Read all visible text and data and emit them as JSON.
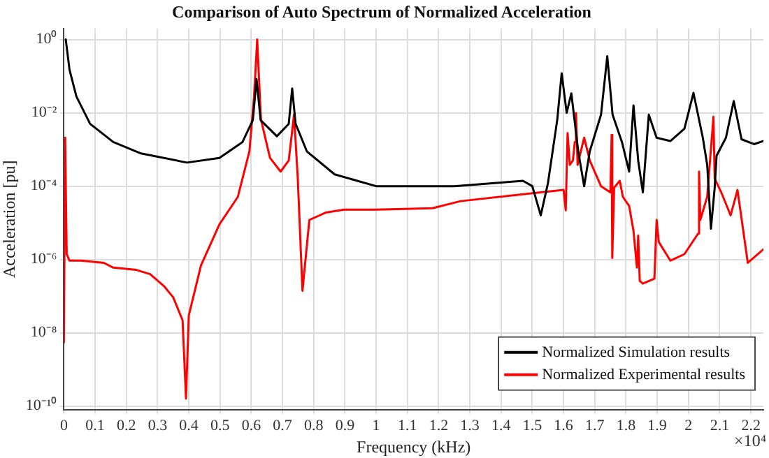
{
  "chart_data": {
    "type": "line",
    "title": "Comparison of Auto Spectrum of Normalized Acceleration",
    "xlabel": "Frequency (kHz)",
    "ylabel": "Acceleration [pu]",
    "log": "y",
    "grid": true,
    "legend": "bottom right",
    "xlim": [
      0,
      2.24
    ],
    "ylim": [
      8e-11,
      2
    ],
    "xticks": [
      0,
      0.1,
      0.2,
      0.3,
      0.4,
      0.5,
      0.6,
      0.7,
      0.8,
      0.9,
      1,
      1.1,
      1.2,
      1.3,
      1.4,
      1.5,
      1.6,
      1.7,
      1.8,
      1.9,
      2,
      2.1,
      2.2
    ],
    "yticks": [
      {
        "value": 1e-10,
        "label": "10⁻¹⁰"
      },
      {
        "value": 1e-08,
        "label": "10⁻⁸"
      },
      {
        "value": 1e-06,
        "label": "10⁻⁶"
      },
      {
        "value": 0.0001,
        "label": "10⁻⁴"
      },
      {
        "value": 0.01,
        "label": "10⁻²"
      },
      {
        "value": 1,
        "label": "10⁰"
      }
    ],
    "annotations": [
      "×10⁴"
    ],
    "series": [
      {
        "name": "Normalized Simulation results",
        "color": "#000000",
        "x": [
          0.006,
          0.018,
          0.04,
          0.084,
          0.158,
          0.247,
          0.394,
          0.498,
          0.572,
          0.605,
          0.617,
          0.63,
          0.682,
          0.72,
          0.731,
          0.742,
          0.778,
          0.867,
          1.0,
          1.25,
          1.47,
          1.5,
          1.527,
          1.55,
          1.58,
          1.594,
          1.61,
          1.625,
          1.647,
          1.666,
          1.684,
          1.72,
          1.74,
          1.757,
          1.787,
          1.81,
          1.824,
          1.839,
          1.854,
          1.873,
          1.898,
          1.942,
          1.987,
          2.016,
          2.046,
          2.06,
          2.072,
          2.084,
          2.09,
          2.12,
          2.145,
          2.17,
          2.21,
          2.24
        ],
        "values": [
          1,
          0.15,
          0.028,
          0.005,
          0.0016,
          0.00078,
          0.00044,
          0.00059,
          0.0016,
          0.0063,
          0.083,
          0.0063,
          0.0023,
          0.005,
          0.046,
          0.005,
          0.00089,
          0.00021,
          0.0001,
          0.0001,
          0.00014,
          0.0001,
          1.6e-05,
          0.00012,
          0.0066,
          0.12,
          0.01,
          0.034,
          0.00089,
          0.0001,
          0.00089,
          0.0089,
          0.35,
          0.0089,
          0.0016,
          0.00025,
          0.016,
          0.0005,
          6.8e-05,
          0.0089,
          0.0021,
          0.0017,
          0.0037,
          0.035,
          0.0021,
          0.00038,
          6.9e-06,
          9.1e-05,
          0.00068,
          0.0021,
          0.021,
          0.0019,
          0.0014,
          0.0017
        ]
      },
      {
        "name": "Normalized Experimental results",
        "color": "#ff0000",
        "x": [
          0,
          0.004,
          0.009,
          0.018,
          0.055,
          0.128,
          0.158,
          0.232,
          0.276,
          0.32,
          0.35,
          0.38,
          0.391,
          0.4,
          0.439,
          0.498,
          0.557,
          0.594,
          0.609,
          0.619,
          0.631,
          0.66,
          0.694,
          0.72,
          0.737,
          0.749,
          0.764,
          0.786,
          0.838,
          0.897,
          1.0,
          1.18,
          1.27,
          1.47,
          1.6,
          1.607,
          1.613,
          1.62,
          1.63,
          1.636,
          1.64,
          1.645,
          1.666,
          1.684,
          1.72,
          1.75,
          1.754,
          1.756,
          1.762,
          1.78,
          1.79,
          1.81,
          1.824,
          1.835,
          1.839,
          1.844,
          1.854,
          1.891,
          1.898,
          1.905,
          1.942,
          1.987,
          2.031,
          2.034,
          2.038,
          2.06,
          2.08,
          2.084,
          2.105,
          2.135,
          2.157,
          2.19,
          2.24
        ],
        "values": [
          5.4e-09,
          0.0021,
          1.4e-06,
          9.3e-07,
          9.3e-07,
          8.1e-07,
          6e-07,
          5.2e-07,
          4e-07,
          1.9e-07,
          9.3e-08,
          2.2e-08,
          1.6e-10,
          3e-08,
          6.9e-07,
          9.1e-06,
          5.1e-05,
          0.00089,
          0.028,
          1,
          0.0066,
          0.00059,
          0.00025,
          0.0005,
          0.0089,
          0.00016,
          1.4e-07,
          1.2e-05,
          1.9e-05,
          2.3e-05,
          2.3e-05,
          2.5e-05,
          3.9e-05,
          6e-05,
          7.9e-05,
          2.2e-05,
          0.0028,
          0.00038,
          0.0005,
          0.0016,
          0.01,
          0.00038,
          0.0021,
          0.0005,
          0.0001,
          6.8e-05,
          0.0025,
          1.1e-06,
          9.1e-05,
          0.00014,
          5.1e-05,
          2.9e-05,
          6e-06,
          6e-07,
          4.5e-06,
          2.6e-07,
          2.2e-07,
          3e-07,
          1.2e-05,
          3e-06,
          9.3e-07,
          1.4e-06,
          5.1e-06,
          0.00025,
          1.2e-05,
          5.1e-05,
          0.0078,
          0.00016,
          6.8e-05,
          1.6e-05,
          7.9e-05,
          8.1e-07,
          1.9e-06
        ]
      }
    ]
  }
}
